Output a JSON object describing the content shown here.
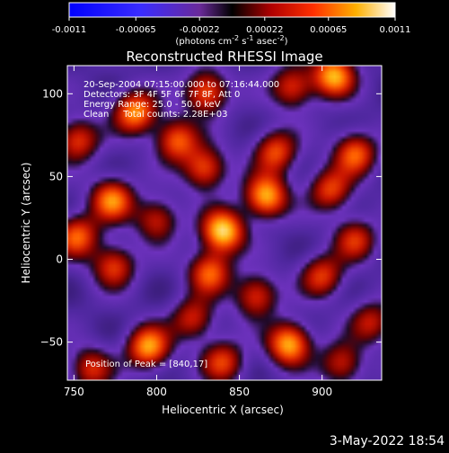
{
  "colorbar": {
    "tick_labels": [
      "-0.0011",
      "-0.00065",
      "-0.00022",
      "0.00022",
      "0.00065",
      "0.0011"
    ],
    "tick_values": [
      -0.0011,
      -0.00065,
      -0.00022,
      0.00022,
      0.00065,
      0.0011
    ],
    "range": [
      -0.0011,
      0.0011
    ],
    "units_label": "(photons cm",
    "units_exp1": "-2",
    "units_mid": " s",
    "units_exp2": "-1",
    "units_mid2": " asec",
    "units_exp3": "-2",
    "units_end": ")"
  },
  "chart_data": {
    "type": "heatmap",
    "title": "Reconstructed RHESSI Image",
    "xlabel": "Heliocentric X (arcsec)",
    "ylabel": "Heliocentric Y (arcsec)",
    "xlim": [
      746,
      936
    ],
    "ylim": [
      -73,
      117
    ],
    "x_ticks": [
      750,
      800,
      850,
      900
    ],
    "y_ticks": [
      -50,
      0,
      50,
      100
    ],
    "x_tick_labels": [
      "750",
      "800",
      "850",
      "900"
    ],
    "y_tick_labels": [
      "−50",
      "0",
      "50",
      "100"
    ],
    "annotations": [
      "20-Sep-2004 07:15:00.000 to 07:16:44.000",
      "Detectors: 3F 4F 5F 6F 7F 8F, Att 0",
      "Energy Range: 25.0 - 50.0 keV",
      "Clean     Total counts: 2.28E+03"
    ],
    "peak_label": "Position of Peak = [840,17]",
    "peak_position": [
      840,
      17
    ],
    "sources": [
      {
        "x": 840,
        "y": 17,
        "v": 1.0
      },
      {
        "x": 907,
        "y": 111,
        "v": 0.88
      },
      {
        "x": 795,
        "y": -53,
        "v": 0.85
      },
      {
        "x": 880,
        "y": -51,
        "v": 0.9
      },
      {
        "x": 787,
        "y": 89,
        "v": 0.82
      },
      {
        "x": 812,
        "y": 72,
        "v": 0.7
      },
      {
        "x": 830,
        "y": 101,
        "v": 0.72
      },
      {
        "x": 882,
        "y": 104,
        "v": 0.6
      },
      {
        "x": 773,
        "y": 36,
        "v": 0.78
      },
      {
        "x": 752,
        "y": 72,
        "v": 0.62
      },
      {
        "x": 752,
        "y": 14,
        "v": 0.7
      },
      {
        "x": 774,
        "y": -4,
        "v": 0.62
      },
      {
        "x": 829,
        "y": 55,
        "v": 0.68
      },
      {
        "x": 866,
        "y": 38,
        "v": 0.9
      },
      {
        "x": 872,
        "y": 65,
        "v": 0.65
      },
      {
        "x": 832,
        "y": -8,
        "v": 0.7
      },
      {
        "x": 800,
        "y": 24,
        "v": 0.55
      },
      {
        "x": 920,
        "y": 64,
        "v": 0.7
      },
      {
        "x": 905,
        "y": 42,
        "v": 0.62
      },
      {
        "x": 920,
        "y": 12,
        "v": 0.55
      },
      {
        "x": 900,
        "y": -10,
        "v": 0.6
      },
      {
        "x": 860,
        "y": -22,
        "v": 0.62
      },
      {
        "x": 822,
        "y": -36,
        "v": 0.55
      },
      {
        "x": 840,
        "y": -62,
        "v": 0.6
      },
      {
        "x": 760,
        "y": -66,
        "v": 0.55
      },
      {
        "x": 912,
        "y": -63,
        "v": 0.55
      },
      {
        "x": 930,
        "y": -38,
        "v": 0.5
      }
    ]
  },
  "footer": {
    "timestamp": "3-May-2022 18:54"
  }
}
